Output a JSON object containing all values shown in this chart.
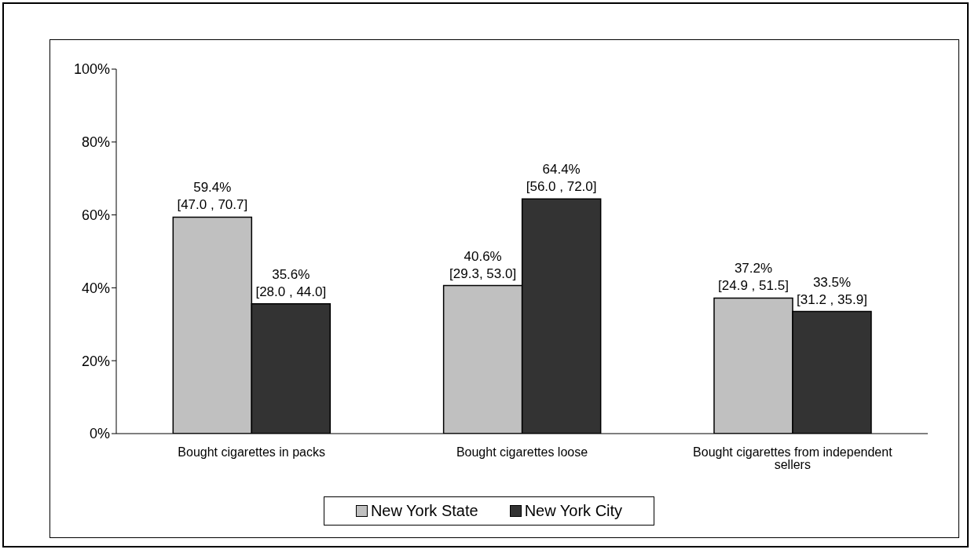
{
  "chart_data": {
    "type": "bar",
    "categories": [
      "Bought cigarettes in packs",
      "Bought cigarettes loose",
      "Bought cigarettes from independent sellers"
    ],
    "series": [
      {
        "name": "New York State",
        "color": "#c0c0c0",
        "values": [
          59.4,
          40.6,
          37.2
        ],
        "value_labels": [
          "59.4%\n[47.0 , 70.7]",
          "40.6%\n[29.3, 53.0]",
          "37.2%\n[24.9 , 51.5]"
        ]
      },
      {
        "name": "New York City",
        "color": "#333333",
        "values": [
          35.6,
          64.4,
          33.5
        ],
        "value_labels": [
          "35.6%\n[28.0 , 44.0]",
          "64.4%\n[56.0 , 72.0]",
          "33.5%\n[31.2 , 35.9]"
        ]
      }
    ],
    "ylim": [
      0,
      100
    ],
    "yticks": [
      {
        "value": 0,
        "label": "0%"
      },
      {
        "value": 20,
        "label": "20%"
      },
      {
        "value": 40,
        "label": "40%"
      },
      {
        "value": 60,
        "label": "60%"
      },
      {
        "value": 80,
        "label": "80%"
      },
      {
        "value": 100,
        "label": "100%"
      }
    ],
    "grid": false,
    "legend": "bottom"
  }
}
